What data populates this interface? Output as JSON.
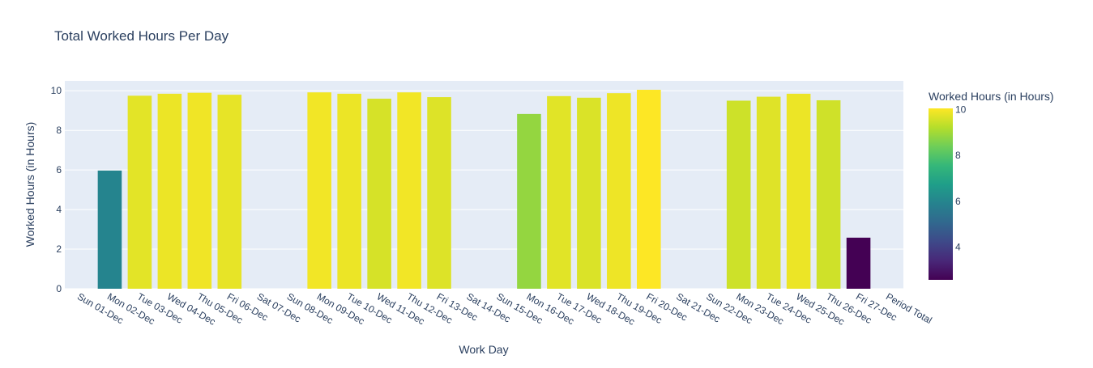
{
  "chart_data": {
    "type": "bar",
    "title": "Total Worked Hours Per Day",
    "xlabel": "Work Day",
    "ylabel": "Worked Hours (in Hours)",
    "categories": [
      "Sun 01-Dec",
      "Mon 02-Dec",
      "Tue 03-Dec",
      "Wed 04-Dec",
      "Thu 05-Dec",
      "Fri 06-Dec",
      "Sat 07-Dec",
      "Sun 08-Dec",
      "Mon 09-Dec",
      "Tue 10-Dec",
      "Wed 11-Dec",
      "Thu 12-Dec",
      "Fri 13-Dec",
      "Sat 14-Dec",
      "Sun 15-Dec",
      "Mon 16-Dec",
      "Tue 17-Dec",
      "Wed 18-Dec",
      "Thu 19-Dec",
      "Fri 20-Dec",
      "Sat 21-Dec",
      "Sun 22-Dec",
      "Mon 23-Dec",
      "Tue 24-Dec",
      "Wed 25-Dec",
      "Thu 26-Dec",
      "Fri 27-Dec",
      "Period Total"
    ],
    "values": [
      null,
      5.97,
      9.75,
      9.85,
      9.9,
      9.8,
      null,
      null,
      9.92,
      9.85,
      9.6,
      9.92,
      9.68,
      null,
      null,
      8.83,
      9.73,
      9.65,
      9.88,
      10.05,
      null,
      null,
      9.5,
      9.7,
      9.85,
      9.52,
      2.58,
      null
    ],
    "ylim": [
      0,
      10.5
    ],
    "yticks": [
      0,
      2,
      4,
      6,
      8,
      10
    ],
    "grid": true,
    "colorbar": {
      "title": "Worked Hours (in Hours)",
      "colorscale": "Viridis",
      "range": [
        2.58,
        10.05
      ],
      "ticks": [
        4,
        6,
        8,
        10
      ]
    },
    "colors": {
      "plot_bg": "#e5ecf6",
      "grid": "#ffffff",
      "text": "#2a3f5f"
    }
  }
}
